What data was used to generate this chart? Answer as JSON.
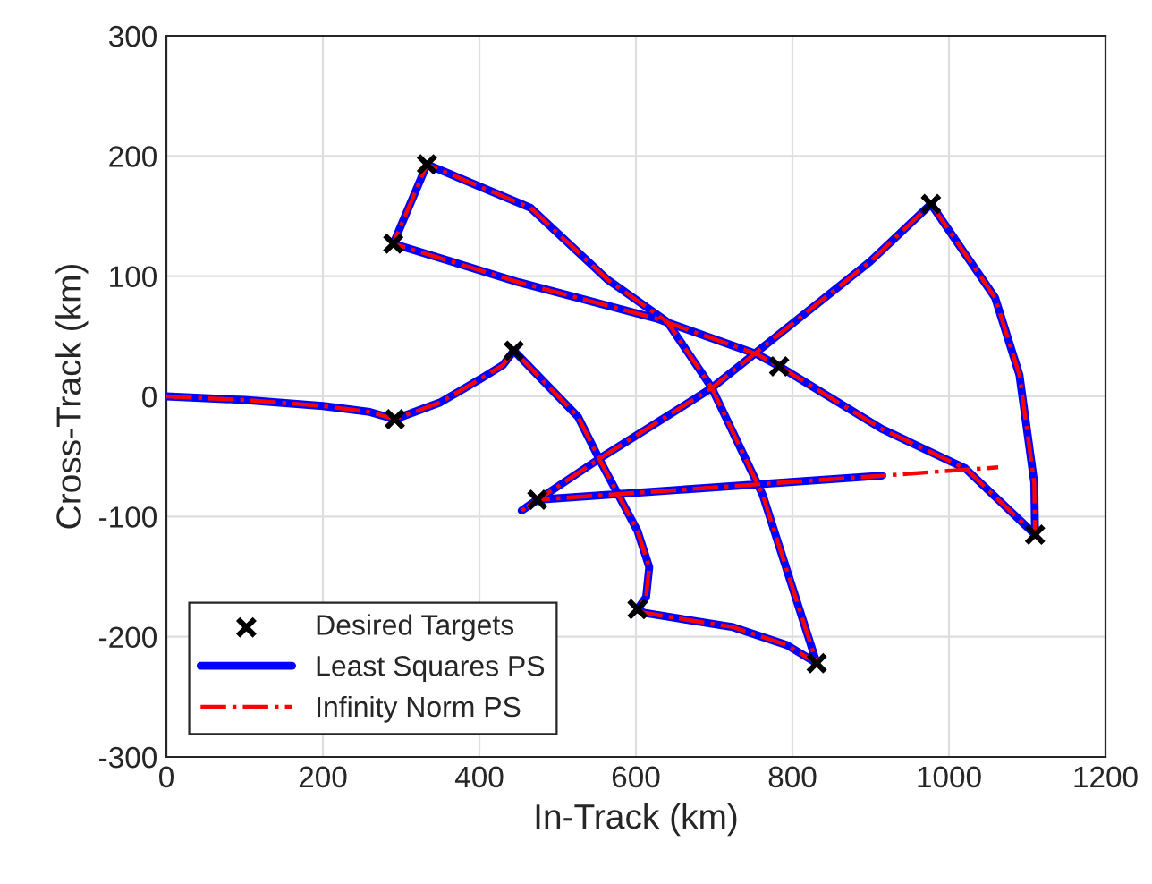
{
  "chart_data": {
    "type": "line",
    "xlabel": "In-Track (km)",
    "ylabel": "Cross-Track (km)",
    "xlim": [
      0,
      1200
    ],
    "xticks": [
      0,
      200,
      400,
      600,
      800,
      1000,
      1200
    ],
    "ylim": [
      -300,
      300
    ],
    "yticks": [
      -300,
      -200,
      -100,
      0,
      100,
      200,
      300
    ],
    "grid": true,
    "legend": "bottom left",
    "series": [
      {
        "name": "Desired Targets",
        "type": "scatter",
        "marker": "cross",
        "color": "#000000",
        "x": [
          292,
          444,
          602,
          831,
          333,
          290,
          783,
          1110,
          977,
          474
        ],
        "values": [
          -19,
          38,
          -177,
          -222,
          193,
          127,
          25,
          -115,
          160,
          -86
        ]
      },
      {
        "name": "Least Squares PS",
        "line_style": "solid",
        "color": "#0000ff",
        "x": [
          0,
          100,
          200,
          260,
          292,
          350,
          400,
          430,
          444,
          526,
          553,
          602,
          617,
          613,
          602,
          610,
          724,
          793,
          831,
          762,
          697,
          640,
          564,
          465,
          333,
          290,
          450,
          625,
          755,
          783,
          914,
          1021,
          1110,
          1109,
          1090,
          1059,
          977,
          899,
          697,
          553,
          454,
          474,
          914
        ],
        "values": [
          0,
          -3,
          -8,
          -13,
          -19,
          -5,
          14,
          26,
          38,
          -17,
          -52,
          -112,
          -142,
          -167,
          -177,
          -180,
          -192,
          -207,
          -222,
          -82,
          7,
          62,
          97,
          157,
          193,
          127,
          95,
          65,
          35,
          25,
          -27,
          -60,
          -115,
          -72,
          18,
          82,
          160,
          112,
          7,
          -52,
          -95,
          -86,
          -66
        ]
      },
      {
        "name": "Infinity Norm PS",
        "line_style": "dashdot",
        "color": "#ff0000",
        "x": [
          0,
          100,
          200,
          260,
          292,
          350,
          400,
          430,
          444,
          526,
          553,
          602,
          617,
          613,
          602,
          610,
          724,
          793,
          831,
          762,
          697,
          640,
          564,
          465,
          333,
          290,
          450,
          625,
          755,
          783,
          914,
          1021,
          1110,
          1109,
          1090,
          1059,
          977,
          899,
          697,
          553,
          454,
          474,
          914,
          1063
        ],
        "values": [
          0,
          -3,
          -8,
          -13,
          -19,
          -5,
          14,
          26,
          38,
          -17,
          -52,
          -112,
          -142,
          -167,
          -177,
          -180,
          -192,
          -207,
          -222,
          -82,
          7,
          62,
          97,
          157,
          193,
          127,
          95,
          65,
          35,
          25,
          -27,
          -60,
          -115,
          -72,
          18,
          82,
          160,
          112,
          7,
          -52,
          -95,
          -86,
          -66,
          -59
        ]
      }
    ]
  }
}
